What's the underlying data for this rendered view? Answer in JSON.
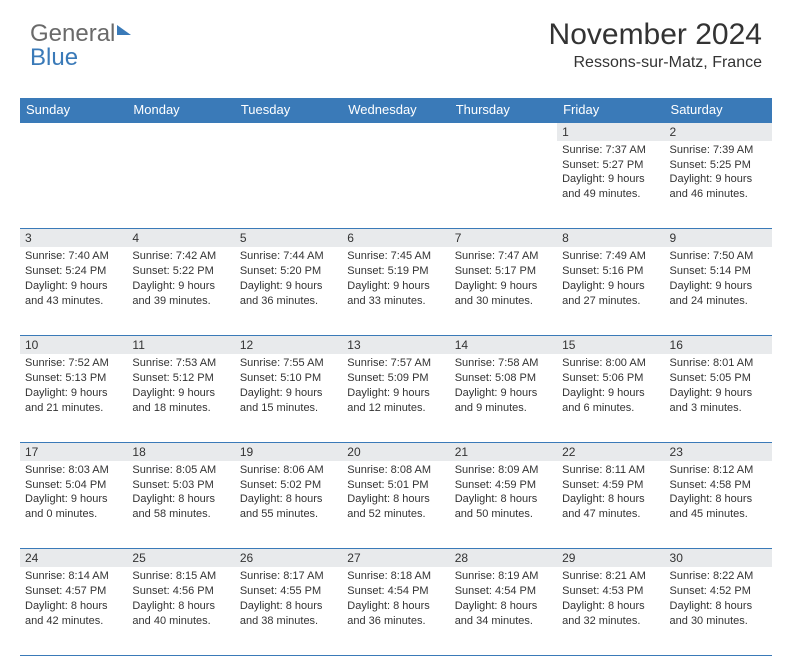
{
  "logo": {
    "part1": "General",
    "part2": "Blue"
  },
  "title": "November 2024",
  "location": "Ressons-sur-Matz, France",
  "dayHeaders": [
    "Sunday",
    "Monday",
    "Tuesday",
    "Wednesday",
    "Thursday",
    "Friday",
    "Saturday"
  ],
  "colors": {
    "headerBg": "#3a7ab8",
    "daynumBg": "#e8eaec",
    "accent": "#3a7ab8"
  },
  "weeks": [
    [
      null,
      null,
      null,
      null,
      null,
      {
        "n": "1",
        "sr": "7:37 AM",
        "ss": "5:27 PM",
        "dl": "9 hours and 49 minutes."
      },
      {
        "n": "2",
        "sr": "7:39 AM",
        "ss": "5:25 PM",
        "dl": "9 hours and 46 minutes."
      }
    ],
    [
      {
        "n": "3",
        "sr": "7:40 AM",
        "ss": "5:24 PM",
        "dl": "9 hours and 43 minutes."
      },
      {
        "n": "4",
        "sr": "7:42 AM",
        "ss": "5:22 PM",
        "dl": "9 hours and 39 minutes."
      },
      {
        "n": "5",
        "sr": "7:44 AM",
        "ss": "5:20 PM",
        "dl": "9 hours and 36 minutes."
      },
      {
        "n": "6",
        "sr": "7:45 AM",
        "ss": "5:19 PM",
        "dl": "9 hours and 33 minutes."
      },
      {
        "n": "7",
        "sr": "7:47 AM",
        "ss": "5:17 PM",
        "dl": "9 hours and 30 minutes."
      },
      {
        "n": "8",
        "sr": "7:49 AM",
        "ss": "5:16 PM",
        "dl": "9 hours and 27 minutes."
      },
      {
        "n": "9",
        "sr": "7:50 AM",
        "ss": "5:14 PM",
        "dl": "9 hours and 24 minutes."
      }
    ],
    [
      {
        "n": "10",
        "sr": "7:52 AM",
        "ss": "5:13 PM",
        "dl": "9 hours and 21 minutes."
      },
      {
        "n": "11",
        "sr": "7:53 AM",
        "ss": "5:12 PM",
        "dl": "9 hours and 18 minutes."
      },
      {
        "n": "12",
        "sr": "7:55 AM",
        "ss": "5:10 PM",
        "dl": "9 hours and 15 minutes."
      },
      {
        "n": "13",
        "sr": "7:57 AM",
        "ss": "5:09 PM",
        "dl": "9 hours and 12 minutes."
      },
      {
        "n": "14",
        "sr": "7:58 AM",
        "ss": "5:08 PM",
        "dl": "9 hours and 9 minutes."
      },
      {
        "n": "15",
        "sr": "8:00 AM",
        "ss": "5:06 PM",
        "dl": "9 hours and 6 minutes."
      },
      {
        "n": "16",
        "sr": "8:01 AM",
        "ss": "5:05 PM",
        "dl": "9 hours and 3 minutes."
      }
    ],
    [
      {
        "n": "17",
        "sr": "8:03 AM",
        "ss": "5:04 PM",
        "dl": "9 hours and 0 minutes."
      },
      {
        "n": "18",
        "sr": "8:05 AM",
        "ss": "5:03 PM",
        "dl": "8 hours and 58 minutes."
      },
      {
        "n": "19",
        "sr": "8:06 AM",
        "ss": "5:02 PM",
        "dl": "8 hours and 55 minutes."
      },
      {
        "n": "20",
        "sr": "8:08 AM",
        "ss": "5:01 PM",
        "dl": "8 hours and 52 minutes."
      },
      {
        "n": "21",
        "sr": "8:09 AM",
        "ss": "4:59 PM",
        "dl": "8 hours and 50 minutes."
      },
      {
        "n": "22",
        "sr": "8:11 AM",
        "ss": "4:59 PM",
        "dl": "8 hours and 47 minutes."
      },
      {
        "n": "23",
        "sr": "8:12 AM",
        "ss": "4:58 PM",
        "dl": "8 hours and 45 minutes."
      }
    ],
    [
      {
        "n": "24",
        "sr": "8:14 AM",
        "ss": "4:57 PM",
        "dl": "8 hours and 42 minutes."
      },
      {
        "n": "25",
        "sr": "8:15 AM",
        "ss": "4:56 PM",
        "dl": "8 hours and 40 minutes."
      },
      {
        "n": "26",
        "sr": "8:17 AM",
        "ss": "4:55 PM",
        "dl": "8 hours and 38 minutes."
      },
      {
        "n": "27",
        "sr": "8:18 AM",
        "ss": "4:54 PM",
        "dl": "8 hours and 36 minutes."
      },
      {
        "n": "28",
        "sr": "8:19 AM",
        "ss": "4:54 PM",
        "dl": "8 hours and 34 minutes."
      },
      {
        "n": "29",
        "sr": "8:21 AM",
        "ss": "4:53 PM",
        "dl": "8 hours and 32 minutes."
      },
      {
        "n": "30",
        "sr": "8:22 AM",
        "ss": "4:52 PM",
        "dl": "8 hours and 30 minutes."
      }
    ]
  ],
  "labels": {
    "sunrise": "Sunrise: ",
    "sunset": "Sunset: ",
    "daylight": "Daylight: "
  }
}
